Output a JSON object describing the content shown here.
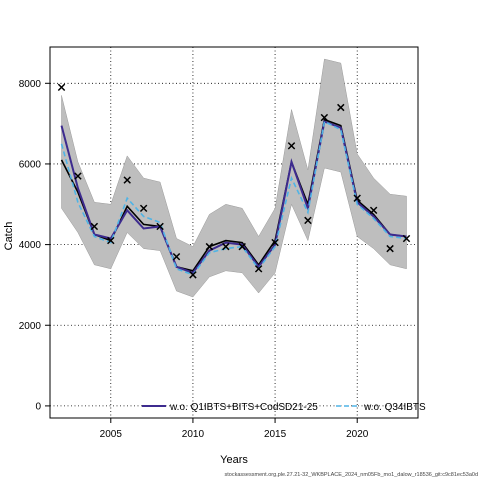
{
  "chart_data": {
    "type": "line",
    "title": "",
    "xlabel": "Years",
    "ylabel": "Catch",
    "xlim": [
      2001.3,
      2023.7
    ],
    "ylim": [
      -300,
      8900
    ],
    "x_ticks": [
      2005,
      2010,
      2015,
      2020
    ],
    "y_ticks": [
      0,
      2000,
      4000,
      6000,
      8000
    ],
    "grid": true,
    "x": [
      2002,
      2003,
      2004,
      2005,
      2006,
      2007,
      2008,
      2009,
      2010,
      2011,
      2012,
      2013,
      2014,
      2015,
      2016,
      2017,
      2018,
      2019,
      2020,
      2021,
      2022,
      2023
    ],
    "band": {
      "lower": [
        4900,
        4300,
        3500,
        3400,
        4300,
        3900,
        3850,
        2850,
        2700,
        3200,
        3350,
        3300,
        2800,
        3300,
        5000,
        4100,
        5900,
        5800,
        4200,
        3900,
        3500,
        3400
      ],
      "upper": [
        7700,
        6050,
        5050,
        5000,
        6200,
        5650,
        5550,
        4150,
        3950,
        4750,
        5000,
        4900,
        4200,
        4900,
        7350,
        5850,
        8600,
        8500,
        6250,
        5650,
        5250,
        5200
      ],
      "color": "#bebebe"
    },
    "series": [
      {
        "name": "",
        "style": "solid-black",
        "values": [
          6100,
          5300,
          4250,
          4100,
          4950,
          4500,
          4450,
          3450,
          3350,
          3950,
          4100,
          4050,
          3500,
          4100,
          6050,
          5000,
          7100,
          6950,
          5100,
          4750,
          4250,
          4200
        ]
      },
      {
        "name": "w.o. Q1IBTS+BITS+CodSD21-25",
        "style": "solid",
        "color": "#3d2b8f",
        "values": [
          6950,
          5400,
          4250,
          4150,
          4850,
          4400,
          4450,
          3450,
          3300,
          3850,
          4050,
          4000,
          3450,
          4000,
          6050,
          4900,
          7050,
          6900,
          5050,
          4700,
          4250,
          4200
        ]
      },
      {
        "name": "w.o. Q34IBTS",
        "style": "dashed",
        "color": "#4fb4e6",
        "values": [
          6500,
          5050,
          4200,
          4050,
          5150,
          4700,
          4550,
          3400,
          3250,
          3800,
          3900,
          3950,
          3400,
          3950,
          5650,
          4800,
          7050,
          6850,
          5000,
          4650,
          4200,
          4150
        ]
      }
    ],
    "observed": {
      "marker": "x",
      "values": [
        7900,
        5700,
        4450,
        4100,
        5600,
        4900,
        4450,
        3700,
        3250,
        3950,
        3950,
        3950,
        3400,
        4050,
        6450,
        4600,
        7150,
        7400,
        5150,
        4850,
        3900,
        4150
      ]
    },
    "legend_position": "bottom",
    "footer": "stockassessment.org,ple.27.21-32_WKBPLACE_2024_nm05Fb_mo1_dalow_r18536_git:c9c81ec53a0d"
  }
}
